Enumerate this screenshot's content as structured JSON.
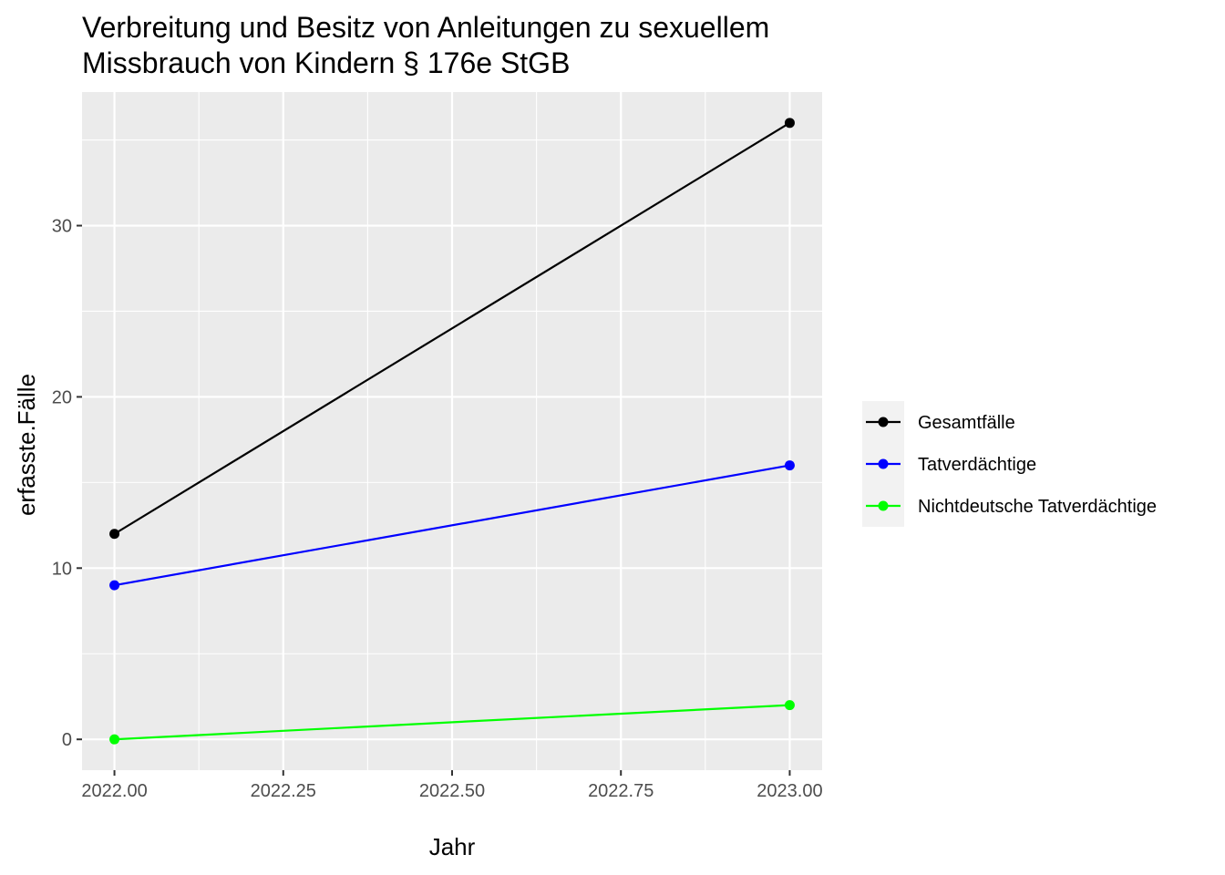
{
  "chart_data": {
    "type": "line",
    "title_lines": [
      "Verbreitung und Besitz von Anleitungen zu sexuellem",
      "Missbrauch von Kindern § 176e StGB"
    ],
    "xlabel": "Jahr",
    "ylabel": "erfasste.Fälle",
    "x": [
      2022,
      2023
    ],
    "xlim": [
      2021.952,
      2023.048
    ],
    "ylim": [
      -1.8,
      37.8
    ],
    "x_ticks": [
      2022.0,
      2022.25,
      2022.5,
      2022.75,
      2023.0
    ],
    "x_tick_labels": [
      "2022.00",
      "2022.25",
      "2022.50",
      "2022.75",
      "2023.00"
    ],
    "y_ticks": [
      0,
      10,
      20,
      30
    ],
    "y_tick_labels": [
      "0",
      "10",
      "20",
      "30"
    ],
    "grid": true,
    "legend_position": "right",
    "series": [
      {
        "name": "Gesamtfälle",
        "values": [
          12,
          36
        ],
        "color": "#000000"
      },
      {
        "name": "Tatverdächtige",
        "values": [
          9,
          16
        ],
        "color": "#0000ff"
      },
      {
        "name": "Nichtdeutsche Tatverdächtige",
        "values": [
          0,
          2
        ],
        "color": "#00ff00"
      }
    ]
  },
  "colors": {
    "panel_background": "#ebebeb",
    "grid_major": "#ffffff",
    "legend_key_background": "#f2f2f2"
  }
}
